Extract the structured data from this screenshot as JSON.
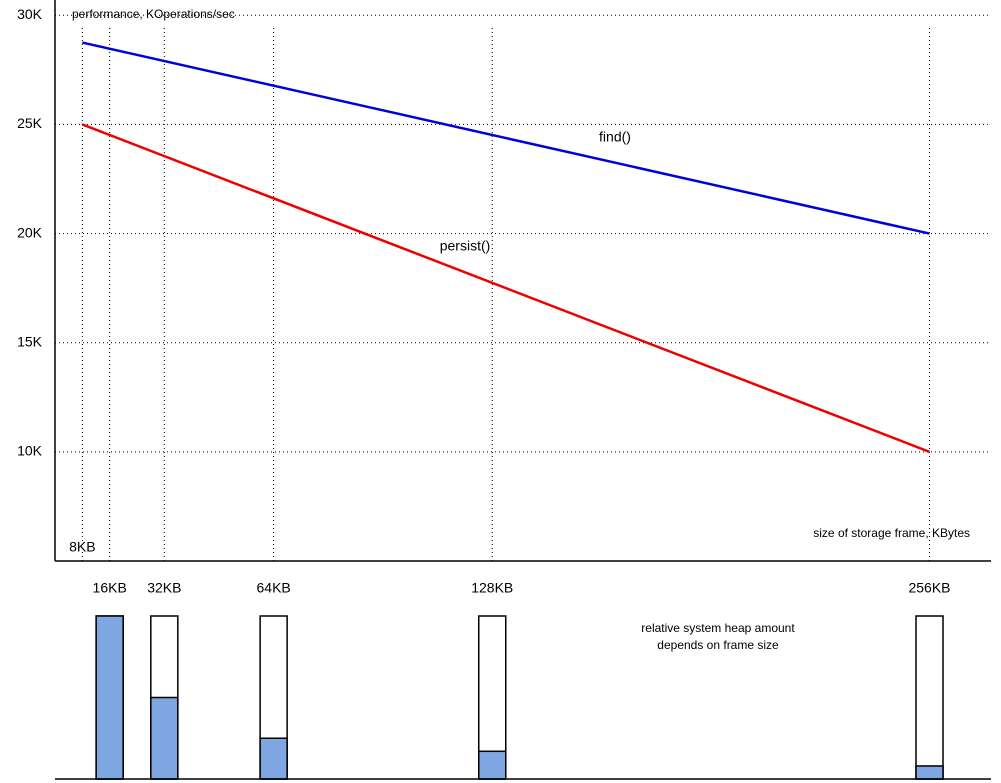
{
  "chart_data": [
    {
      "type": "line",
      "y_label": "performance, KOperations/sec",
      "x_label": "size of storage frame, KBytes",
      "xlim": [
        0,
        274
      ],
      "xticks": [
        {
          "value": 8,
          "label": "8KB"
        },
        {
          "value": 16,
          "label": "16KB"
        },
        {
          "value": 32,
          "label": "32KB"
        },
        {
          "value": 64,
          "label": "64KB"
        },
        {
          "value": 128,
          "label": "128KB"
        },
        {
          "value": 256,
          "label": "256KB"
        }
      ],
      "ylim": [
        5000,
        30700
      ],
      "yticks": [
        {
          "value": 10000,
          "label": "10K"
        },
        {
          "value": 15000,
          "label": "15K"
        },
        {
          "value": 20000,
          "label": "20K"
        },
        {
          "value": 25000,
          "label": "25K"
        },
        {
          "value": 30000,
          "label": "30K"
        }
      ],
      "grid": true,
      "x": [
        8,
        256
      ],
      "series": [
        {
          "name": "find()",
          "color": "#0000dd",
          "values": [
            28750,
            20000
          ]
        },
        {
          "name": "persist()",
          "color": "#ee0000",
          "values": [
            25000,
            10000
          ]
        }
      ]
    },
    {
      "type": "bar",
      "annotation": [
        "relative system heap amount",
        "depends on frame size"
      ],
      "x": [
        16,
        32,
        64,
        128,
        256
      ],
      "values": [
        1,
        0.5,
        0.25,
        0.17,
        0.08
      ],
      "ylim": [
        0,
        1
      ],
      "color": "#7ea6e0"
    }
  ]
}
